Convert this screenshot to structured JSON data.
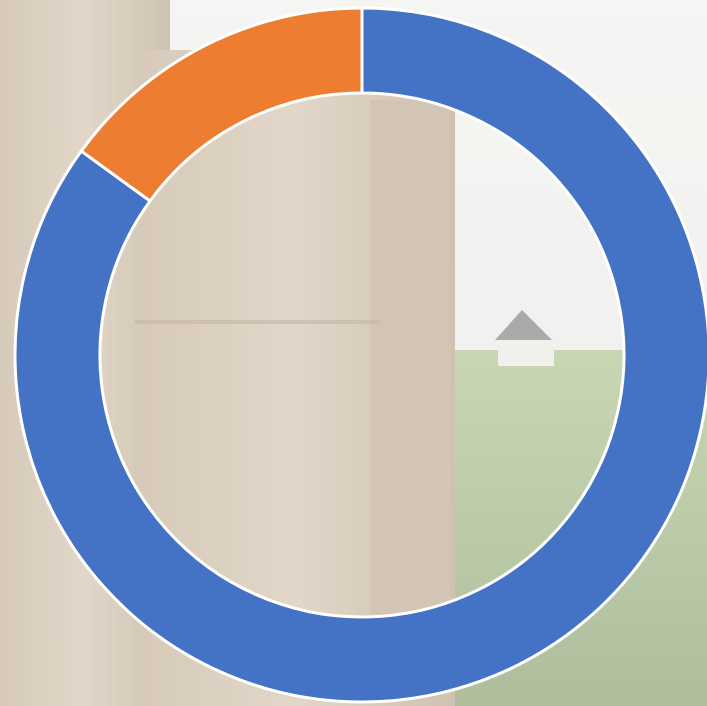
{
  "chart_data": {
    "type": "donut",
    "values": [
      85,
      15
    ],
    "colors": [
      "#4472c4",
      "#ed7d31"
    ]
  }
}
